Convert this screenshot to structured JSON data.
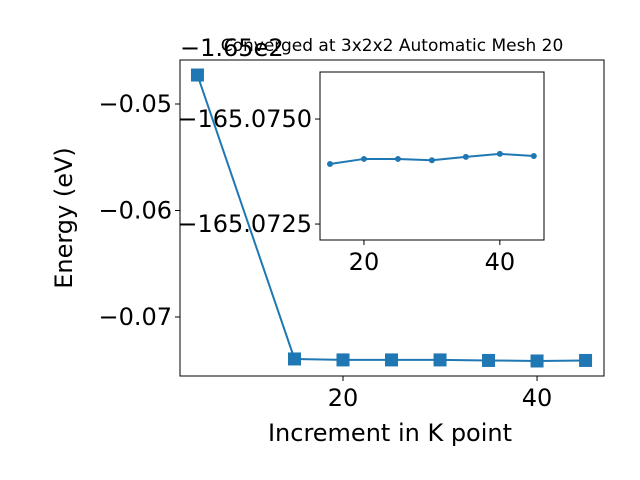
{
  "chart_data": [
    {
      "type": "line",
      "title": "Converged at 3x2x2 Automatic Mesh 20",
      "offset_text": "−1.65e2",
      "x_label": "Increment in K point",
      "y_label": "Energy (eV)",
      "x": [
        5,
        15,
        20,
        25,
        30,
        35,
        40,
        45
      ],
      "series": [
        {
          "color": "#1f77b4",
          "marker": "square",
          "values": [
            -0.04728,
            -0.07394,
            -0.07403,
            -0.07403,
            -0.07403,
            -0.07408,
            -0.07413,
            -0.07408
          ]
        }
      ],
      "xlim": [
        3.2,
        46.9
      ],
      "xticks": [
        20,
        40
      ],
      "ylim": [
        -0.07554,
        -0.04587
      ],
      "yticks": [
        {
          "value": -0.07,
          "label": "−0.07"
        },
        {
          "value": -0.06,
          "label": "−0.06"
        },
        {
          "value": -0.05,
          "label": "−0.05"
        }
      ]
    },
    {
      "type": "line",
      "x": [
        15,
        20,
        25,
        30,
        35,
        40,
        45
      ],
      "series": [
        {
          "color": "#1f77b4",
          "marker": "circle",
          "values": [
            -165.07393,
            -165.07405,
            -165.07405,
            -165.07402,
            -165.0741,
            -165.07417,
            -165.07412
          ]
        }
      ],
      "xlim": [
        13.53,
        46.5
      ],
      "xticks": [
        20,
        40
      ],
      "ylim": [
        -165.07212,
        -165.07612
      ],
      "yticks": [
        {
          "value": -165.0725,
          "label": "−165.0725"
        },
        {
          "value": -165.075,
          "label": "−165.0750"
        }
      ]
    }
  ]
}
